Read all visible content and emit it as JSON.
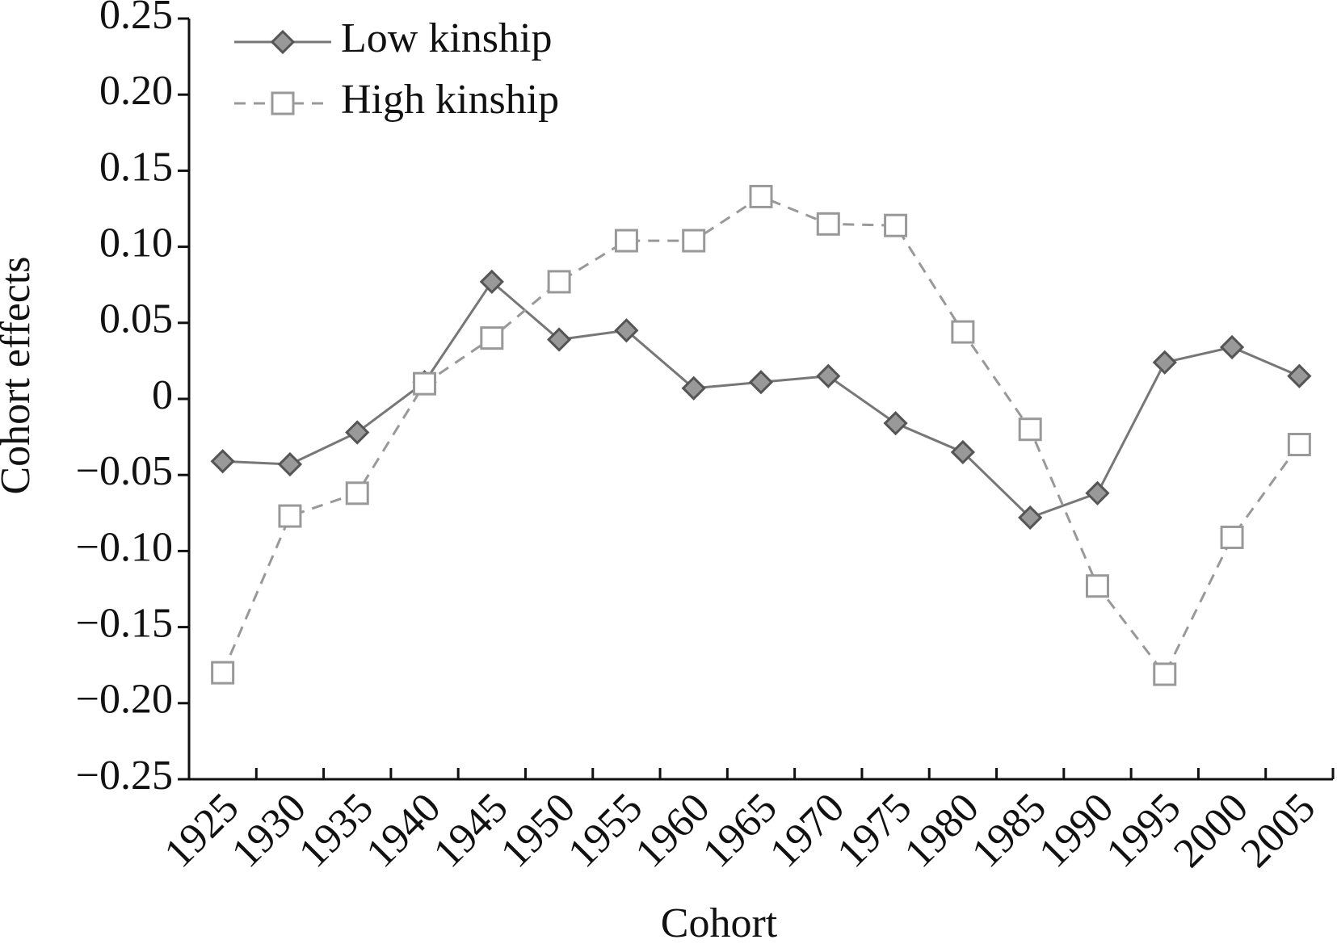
{
  "chart_data": {
    "type": "line",
    "x_label": "Cohort",
    "y_label": "Cohort effects",
    "categories": [
      "1925",
      "1930",
      "1935",
      "1940",
      "1945",
      "1950",
      "1955",
      "1960",
      "1965",
      "1970",
      "1975",
      "1980",
      "1985",
      "1990",
      "1995",
      "2000",
      "2005"
    ],
    "series": [
      {
        "name": "Low kinship",
        "color": "#777777",
        "marker_fill": "#999999",
        "marker": "diamond",
        "line_style": "solid",
        "values": [
          -0.041,
          -0.043,
          -0.022,
          0.011,
          0.077,
          0.039,
          0.045,
          0.007,
          0.011,
          0.015,
          -0.016,
          -0.035,
          -0.078,
          -0.062,
          0.024,
          0.034,
          0.015
        ]
      },
      {
        "name": "High kinship",
        "color": "#999999",
        "marker_fill": "#ffffff",
        "marker": "square",
        "line_style": "dashed",
        "values": [
          -0.18,
          -0.077,
          -0.062,
          0.01,
          0.04,
          0.077,
          0.104,
          0.104,
          0.133,
          0.115,
          0.114,
          0.044,
          -0.02,
          -0.123,
          -0.181,
          -0.091,
          -0.03
        ]
      }
    ],
    "ylim": [
      -0.25,
      0.25
    ],
    "yticks": [
      {
        "value": -0.25,
        "label": "−0.25"
      },
      {
        "value": -0.2,
        "label": "−0.20"
      },
      {
        "value": -0.15,
        "label": "−0.15"
      },
      {
        "value": -0.1,
        "label": "−0.10"
      },
      {
        "value": -0.05,
        "label": "−0.05"
      },
      0,
      0.05,
      {
        "value": 0.1,
        "label": "0.10"
      },
      0.15,
      {
        "value": 0.2,
        "label": "0.20"
      },
      0.25
    ],
    "legend": "top-left"
  }
}
